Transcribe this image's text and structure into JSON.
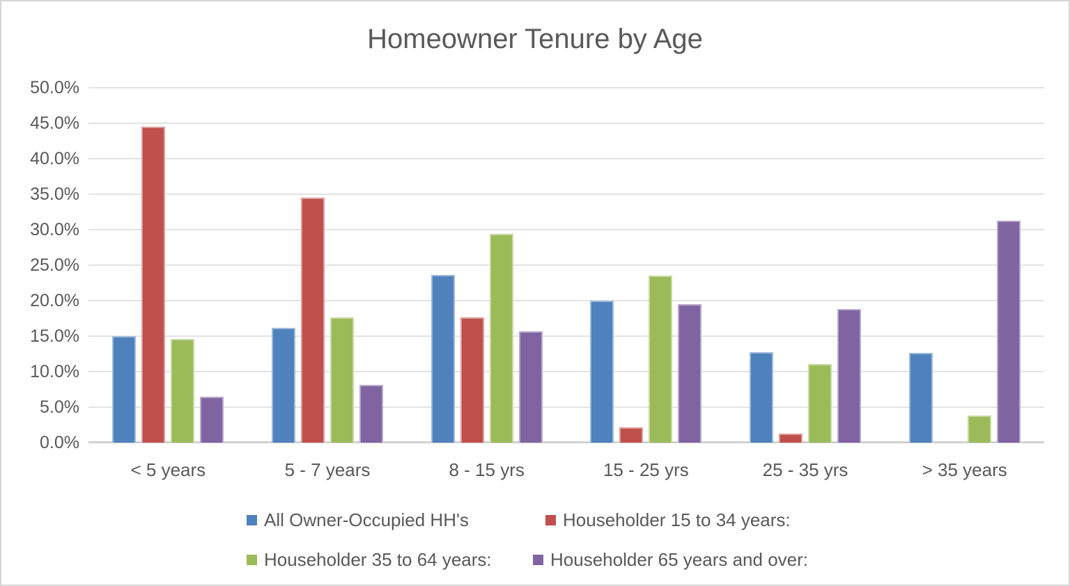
{
  "chart_data": {
    "type": "bar",
    "title": "Homeowner Tenure by Age",
    "categories": [
      "< 5 years",
      "5 - 7 years",
      "8 - 15 yrs",
      "15 - 25 yrs",
      "25 - 35 yrs",
      "> 35 years"
    ],
    "series": [
      {
        "name": "All Owner-Occupied HH's",
        "color": "#4F81BD",
        "values": [
          15.0,
          16.2,
          23.6,
          20.0,
          12.7,
          12.6
        ]
      },
      {
        "name": "Householder 15 to 34 years:",
        "color": "#C0504D",
        "values": [
          44.5,
          34.5,
          17.6,
          2.2,
          1.3,
          0.0
        ]
      },
      {
        "name": "Householder 35 to 64 years:",
        "color": "#9BBB59",
        "values": [
          14.6,
          17.6,
          29.4,
          23.5,
          11.1,
          3.8
        ]
      },
      {
        "name": "Householder 65 years and over:",
        "color": "#8064A2",
        "values": [
          6.5,
          8.1,
          15.7,
          19.5,
          18.8,
          31.3
        ]
      }
    ],
    "ylim": [
      0,
      50
    ],
    "ytick_step": 5,
    "ytick_labels": [
      "50.0%",
      "45.0%",
      "40.0%",
      "35.0%",
      "30.0%",
      "25.0%",
      "20.0%",
      "15.0%",
      "10.0%",
      "5.0%",
      "0.0%"
    ],
    "grid": true,
    "legend_position": "bottom"
  },
  "colors": {
    "text": "#595959",
    "gridline": "#e3e3e3",
    "axis_line": "#d2d2d2",
    "frame_border": "#d5d5d5",
    "background": "#ffffff"
  }
}
